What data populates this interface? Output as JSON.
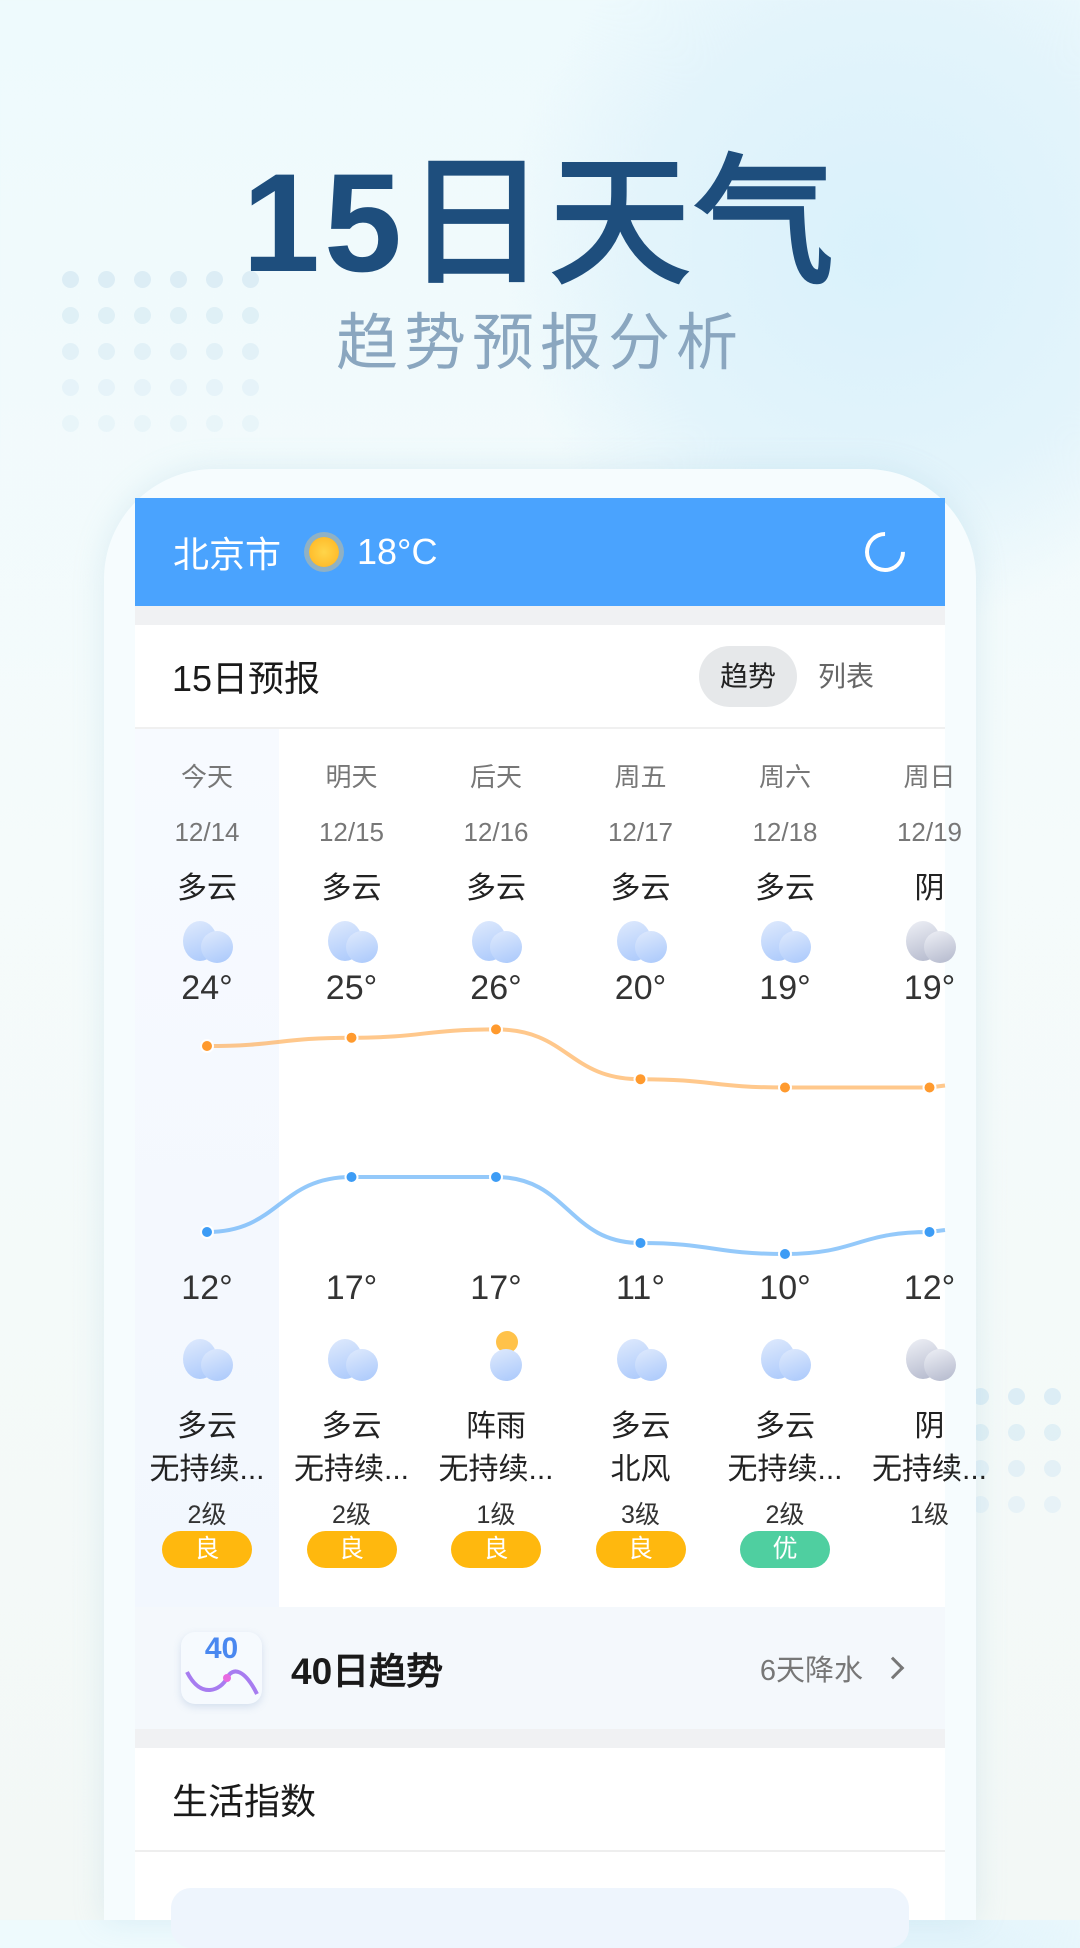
{
  "promo": {
    "title": "15日天气",
    "subtitle": "趋势预报分析"
  },
  "header": {
    "city": "北京市",
    "temp": "18°C",
    "weather_icon": "sun-icon",
    "refresh_icon": "refresh-icon",
    "color": "#4aa3fe"
  },
  "forecast": {
    "title": "15日预报",
    "tabs": [
      {
        "label": "趋势",
        "active": true
      },
      {
        "label": "列表",
        "active": false
      }
    ],
    "days": [
      {
        "weekday": "今天",
        "date": "12/14",
        "day_cond": "多云",
        "high": "24°",
        "low": "12°",
        "night_cond": "多云",
        "wind": "无持续...",
        "level": "2级",
        "aqi": "良",
        "aqi_color": "#ffb80e",
        "icon": "cloud",
        "night_icon": "cloud"
      },
      {
        "weekday": "明天",
        "date": "12/15",
        "day_cond": "多云",
        "high": "25°",
        "low": "17°",
        "night_cond": "多云",
        "wind": "无持续...",
        "level": "2级",
        "aqi": "良",
        "aqi_color": "#ffb80e",
        "icon": "cloud",
        "night_icon": "cloud"
      },
      {
        "weekday": "后天",
        "date": "12/16",
        "day_cond": "多云",
        "high": "26°",
        "low": "17°",
        "night_cond": "阵雨",
        "wind": "无持续...",
        "level": "1级",
        "aqi": "良",
        "aqi_color": "#ffb80e",
        "icon": "cloud",
        "night_icon": "shower"
      },
      {
        "weekday": "周五",
        "date": "12/17",
        "day_cond": "多云",
        "high": "20°",
        "low": "11°",
        "night_cond": "多云",
        "wind": "北风",
        "level": "3级",
        "aqi": "良",
        "aqi_color": "#ffb80e",
        "icon": "cloud",
        "night_icon": "cloud"
      },
      {
        "weekday": "周六",
        "date": "12/18",
        "day_cond": "多云",
        "high": "19°",
        "low": "10°",
        "night_cond": "多云",
        "wind": "无持续...",
        "level": "2级",
        "aqi": "优",
        "aqi_color": "#4fcfa0",
        "icon": "cloud",
        "night_icon": "cloud"
      },
      {
        "weekday": "周日",
        "date": "12/19",
        "day_cond": "阴",
        "high": "19°",
        "low": "12°",
        "night_cond": "阴",
        "wind": "无持续...",
        "level": "1级",
        "aqi": "",
        "aqi_color": "",
        "icon": "overcast",
        "night_icon": "overcast"
      }
    ],
    "high_values": [
      24,
      25,
      26,
      20,
      19,
      19
    ],
    "low_values": [
      12,
      17,
      17,
      11,
      10,
      12
    ],
    "high_color": "#ff9a2e",
    "low_color": "#3d9cf5"
  },
  "trend40": {
    "icon_text": "40",
    "title": "40日趋势",
    "summary": "6天降水"
  },
  "life": {
    "title": "生活指数"
  }
}
